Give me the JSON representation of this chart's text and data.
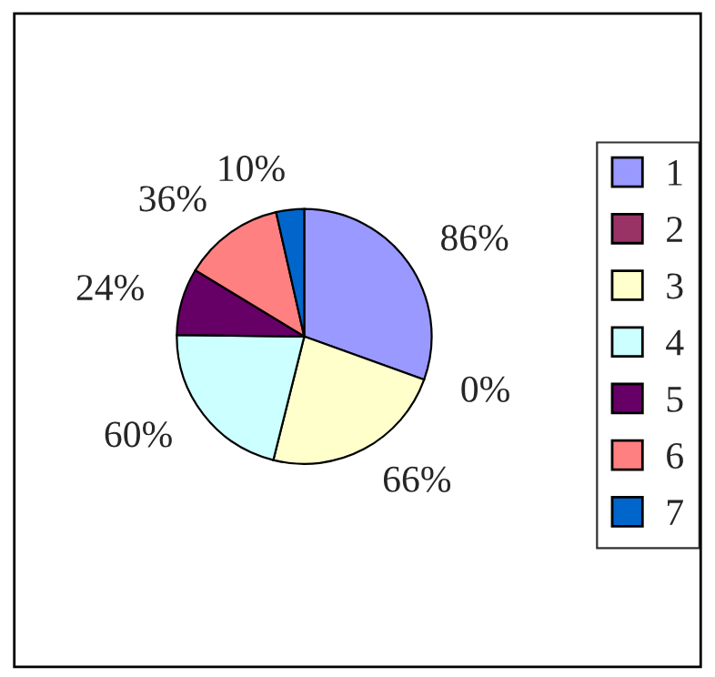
{
  "chart_data": {
    "type": "pie",
    "categories": [
      "1",
      "2",
      "3",
      "4",
      "5",
      "6",
      "7"
    ],
    "values": [
      86,
      0,
      66,
      60,
      24,
      36,
      10
    ],
    "value_labels": [
      "86%",
      "0%",
      "66%",
      "60%",
      "24%",
      "36%",
      "10%"
    ],
    "colors": [
      "#9999ff",
      "#993366",
      "#ffffcc",
      "#ccffff",
      "#660066",
      "#ff8080",
      "#0066cc"
    ],
    "legend": "right"
  }
}
